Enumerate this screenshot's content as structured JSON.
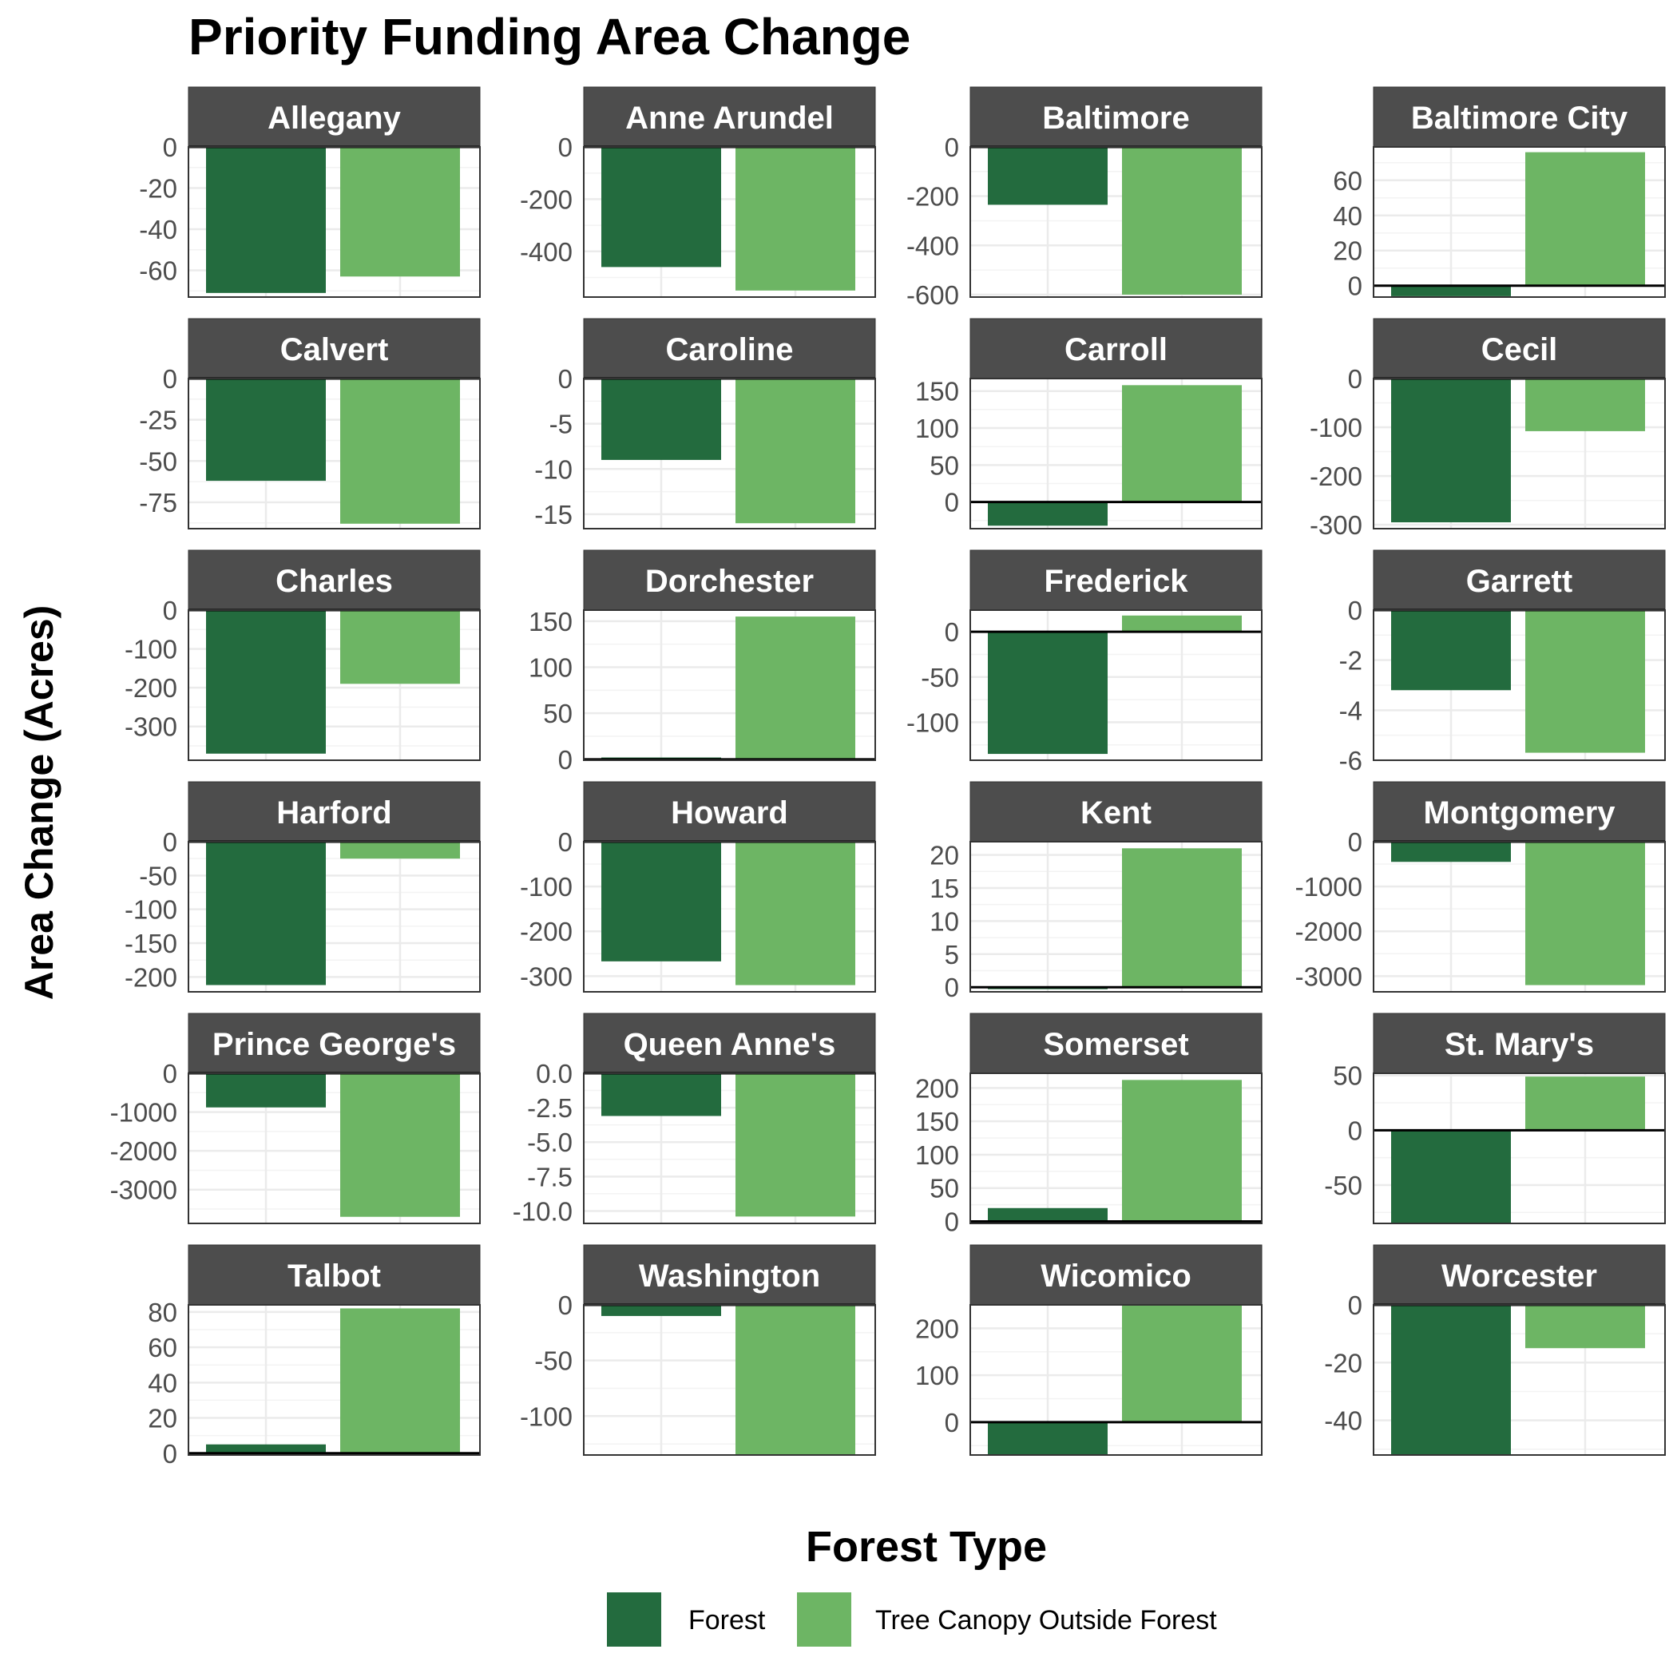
{
  "chart_data": {
    "type": "bar",
    "title": "Priority Funding Area Change",
    "ylabel": "Area Change (Acres)",
    "xlabel": "",
    "legend": {
      "title": "Forest Type",
      "placement": "bottom",
      "entries": [
        "Forest",
        "Tree Canopy Outside Forest"
      ]
    },
    "colors": {
      "Forest": "#236b3e",
      "Tree Canopy Outside Forest": "#6db564",
      "strip": "#4d4d4d",
      "grid": "#ebebeb",
      "zero_line": "#000000"
    },
    "categories": [
      "Forest",
      "Tree Canopy Outside Forest"
    ],
    "grid": true,
    "facets": [
      {
        "name": "Allegany",
        "values": [
          -71,
          -63
        ],
        "ylim": [
          -73,
          0
        ],
        "ticks": [
          "0",
          "-20",
          "-40",
          "-60"
        ],
        "tick_values": [
          0,
          -20,
          -40,
          -60
        ]
      },
      {
        "name": "Anne Arundel",
        "values": [
          -460,
          -550
        ],
        "ylim": [
          -575,
          0
        ],
        "ticks": [
          "0",
          "-200",
          "-400"
        ],
        "tick_values": [
          0,
          -200,
          -400
        ]
      },
      {
        "name": "Baltimore",
        "values": [
          -235,
          -600
        ],
        "ylim": [
          -610,
          0
        ],
        "ticks": [
          "0",
          "-200",
          "-400",
          "-600"
        ],
        "tick_values": [
          0,
          -200,
          -400,
          -600
        ]
      },
      {
        "name": "Baltimore City",
        "values": [
          -6,
          76
        ],
        "ylim": [
          -6.5,
          79
        ],
        "ticks": [
          "60",
          "40",
          "20",
          "0"
        ],
        "tick_values": [
          60,
          40,
          20,
          0
        ]
      },
      {
        "name": "Calvert",
        "values": [
          -62,
          -88
        ],
        "ylim": [
          -91,
          0
        ],
        "ticks": [
          "0",
          "-25",
          "-50",
          "-75"
        ],
        "tick_values": [
          0,
          -25,
          -50,
          -75
        ]
      },
      {
        "name": "Caroline",
        "values": [
          -9,
          -16
        ],
        "ylim": [
          -16.6,
          0
        ],
        "ticks": [
          "0",
          "-5",
          "-10",
          "-15"
        ],
        "tick_values": [
          0,
          -5,
          -10,
          -15
        ]
      },
      {
        "name": "Carroll",
        "values": [
          -32,
          158
        ],
        "ylim": [
          -36,
          167
        ],
        "ticks": [
          "150",
          "100",
          "50",
          "0"
        ],
        "tick_values": [
          150,
          100,
          50,
          0
        ]
      },
      {
        "name": "Cecil",
        "values": [
          -295,
          -108
        ],
        "ylim": [
          -308,
          0
        ],
        "ticks": [
          "0",
          "-100",
          "-200",
          "-300"
        ],
        "tick_values": [
          0,
          -100,
          -200,
          -300
        ]
      },
      {
        "name": "Charles",
        "values": [
          -370,
          -190
        ],
        "ylim": [
          -387,
          0
        ],
        "ticks": [
          "0",
          "-100",
          "-200",
          "-300"
        ],
        "tick_values": [
          0,
          -100,
          -200,
          -300
        ]
      },
      {
        "name": "Dorchester",
        "values": [
          2,
          155
        ],
        "ylim": [
          -1,
          162
        ],
        "ticks": [
          "150",
          "100",
          "50",
          "0"
        ],
        "tick_values": [
          150,
          100,
          50,
          0
        ]
      },
      {
        "name": "Frederick",
        "values": [
          -135,
          18
        ],
        "ylim": [
          -142,
          24
        ],
        "ticks": [
          "0",
          "-50",
          "-100"
        ],
        "tick_values": [
          0,
          -50,
          -100
        ]
      },
      {
        "name": "Garrett",
        "values": [
          -3.2,
          -5.7
        ],
        "ylim": [
          -6,
          0
        ],
        "ticks": [
          "0",
          "-2",
          "-4",
          "-6"
        ],
        "tick_values": [
          0,
          -2,
          -4,
          -6
        ]
      },
      {
        "name": "Harford",
        "values": [
          -212,
          -25
        ],
        "ylim": [
          -222,
          0
        ],
        "ticks": [
          "0",
          "-50",
          "-100",
          "-150",
          "-200"
        ],
        "tick_values": [
          0,
          -50,
          -100,
          -150,
          -200
        ]
      },
      {
        "name": "Howard",
        "values": [
          -267,
          -320
        ],
        "ylim": [
          -335,
          0
        ],
        "ticks": [
          "0",
          "-100",
          "-200",
          "-300"
        ],
        "tick_values": [
          0,
          -100,
          -200,
          -300
        ]
      },
      {
        "name": "Kent",
        "values": [
          -0.3,
          21
        ],
        "ylim": [
          -0.7,
          22
        ],
        "ticks": [
          "20",
          "15",
          "10",
          "5",
          "0"
        ],
        "tick_values": [
          20,
          15,
          10,
          5,
          0
        ]
      },
      {
        "name": "Montgomery",
        "values": [
          -450,
          -3200
        ],
        "ylim": [
          -3350,
          0
        ],
        "ticks": [
          "0",
          "-1000",
          "-2000",
          "-3000"
        ],
        "tick_values": [
          0,
          -1000,
          -2000,
          -3000
        ]
      },
      {
        "name": "Prince George's",
        "values": [
          -880,
          -3700
        ],
        "ylim": [
          -3870,
          0
        ],
        "ticks": [
          "0",
          "-1000",
          "-2000",
          "-3000"
        ],
        "tick_values": [
          0,
          -1000,
          -2000,
          -3000
        ]
      },
      {
        "name": "Queen Anne's",
        "values": [
          -3.1,
          -10.4
        ],
        "ylim": [
          -10.9,
          0
        ],
        "ticks": [
          "0.0",
          "-2.5",
          "-5.0",
          "-7.5",
          "-10.0"
        ],
        "tick_values": [
          0,
          -2.5,
          -5,
          -7.5,
          -10
        ]
      },
      {
        "name": "Somerset",
        "values": [
          20,
          212
        ],
        "ylim": [
          -3,
          222
        ],
        "ticks": [
          "200",
          "150",
          "100",
          "50",
          "0"
        ],
        "tick_values": [
          200,
          150,
          100,
          50,
          0
        ]
      },
      {
        "name": "St. Mary's",
        "values": [
          -85,
          49
        ],
        "ylim": [
          -85,
          52
        ],
        "ticks": [
          "50",
          "0",
          "-50"
        ],
        "tick_values": [
          50,
          0,
          -50
        ]
      },
      {
        "name": "Talbot",
        "values": [
          5,
          82
        ],
        "ylim": [
          -1,
          84
        ],
        "ticks": [
          "80",
          "60",
          "40",
          "20",
          "0"
        ],
        "tick_values": [
          80,
          60,
          40,
          20,
          0
        ]
      },
      {
        "name": "Washington",
        "values": [
          -10,
          -135
        ],
        "ylim": [
          -135,
          0
        ],
        "ticks": [
          "0",
          "-50",
          "-100"
        ],
        "tick_values": [
          0,
          -50,
          -100
        ]
      },
      {
        "name": "Wicomico",
        "values": [
          -70,
          250
        ],
        "ylim": [
          -70,
          250
        ],
        "ticks": [
          "200",
          "100",
          "0"
        ],
        "tick_values": [
          200,
          100,
          0
        ]
      },
      {
        "name": "Worcester",
        "values": [
          -52,
          -15
        ],
        "ylim": [
          -52,
          0
        ],
        "ticks": [
          "0",
          "-20",
          "-40"
        ],
        "tick_values": [
          0,
          -20,
          -40
        ]
      }
    ]
  }
}
